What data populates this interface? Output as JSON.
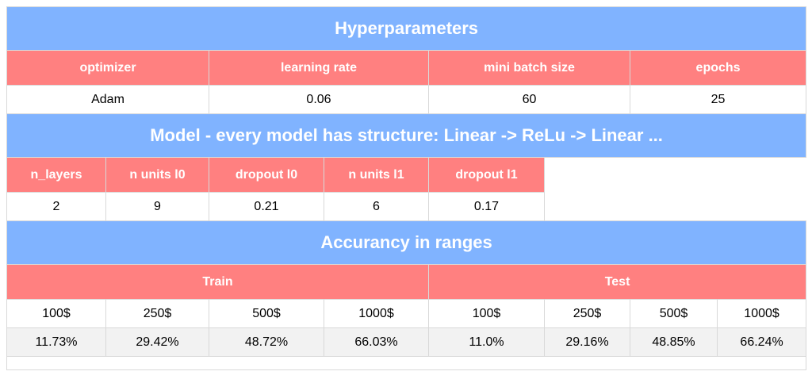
{
  "sections": {
    "hyperparameters": {
      "title": "Hyperparameters",
      "headers": [
        "optimizer",
        "learning rate",
        "mini batch size",
        "epochs"
      ],
      "values": [
        "Adam",
        "0.06",
        "60",
        "25"
      ]
    },
    "model": {
      "title": "Model - every model has structure: Linear -> ReLu -> Linear ...",
      "headers": [
        "n_layers",
        "n units l0",
        "dropout l0",
        "n units l1",
        "dropout l1"
      ],
      "values": [
        "2",
        "9",
        "0.21",
        "6",
        "0.17"
      ]
    },
    "accuracy": {
      "title": "Accurancy in ranges",
      "groups": [
        "Train",
        "Test"
      ],
      "ranges": [
        "100$",
        "250$",
        "500$",
        "1000$",
        "100$",
        "250$",
        "500$",
        "1000$"
      ],
      "values": [
        "11.73%",
        "29.42%",
        "48.72%",
        "66.03%",
        "11.0%",
        "29.16%",
        "48.85%",
        "66.24%"
      ]
    }
  },
  "colors": {
    "section_header": "#80b3ff",
    "column_header": "#ff8080",
    "row_alt": "#f2f2f2"
  }
}
